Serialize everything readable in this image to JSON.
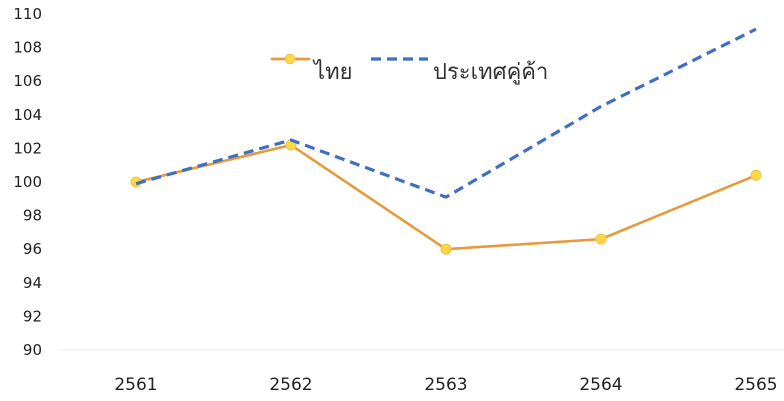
{
  "chart_data": {
    "type": "line",
    "categories": [
      "2561",
      "2562",
      "2563",
      "2564",
      "2565"
    ],
    "series": [
      {
        "name": "ไทย",
        "values": [
          100.0,
          102.2,
          96.0,
          96.6,
          100.4
        ],
        "color": "#e79a3b",
        "style": "solid",
        "marker_color": "#ffd84a"
      },
      {
        "name": "ประเทศคู่ค้า",
        "values": [
          99.9,
          102.5,
          99.1,
          104.5,
          109.1
        ],
        "color": "#3f6fbe",
        "style": "dashed"
      }
    ],
    "ylim": [
      90,
      110
    ],
    "yticks": [
      90,
      92,
      94,
      96,
      98,
      100,
      102,
      104,
      106,
      108,
      110
    ],
    "grid": false,
    "legend_position": "top-center",
    "title": "",
    "xlabel": "",
    "ylabel": ""
  }
}
